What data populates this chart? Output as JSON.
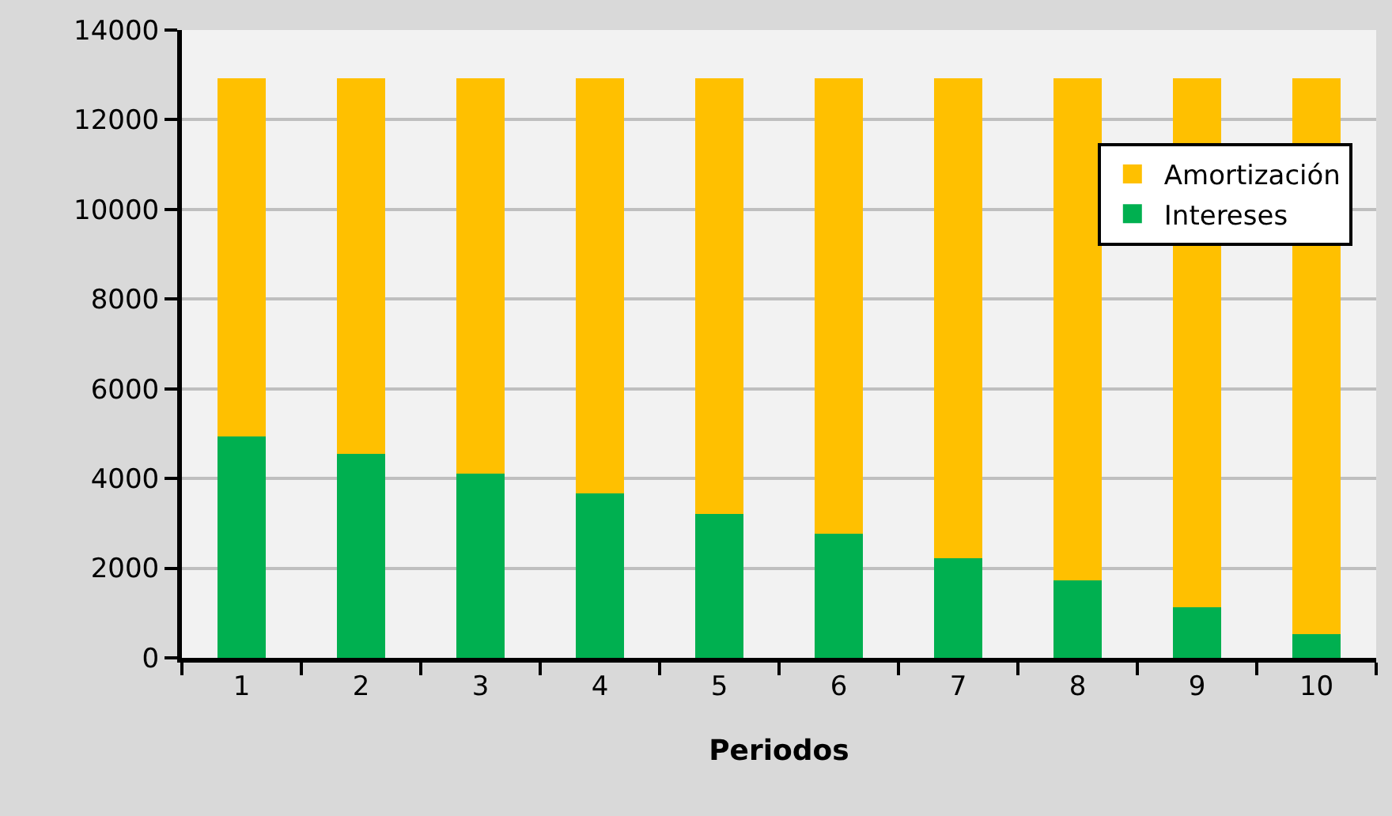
{
  "chart_data": {
    "type": "bar",
    "xlabel": "Periodos",
    "categories": [
      "1",
      "2",
      "3",
      "4",
      "5",
      "6",
      "7",
      "8",
      "9",
      "10"
    ],
    "stacked": true,
    "series": [
      {
        "name": "Intereses",
        "color": "#00b050",
        "values": [
          4930,
          4550,
          4100,
          3670,
          3210,
          2760,
          2230,
          1730,
          1130,
          530
        ]
      },
      {
        "name": "Amortización",
        "color": "#ffc000",
        "values": [
          8000,
          8380,
          8830,
          9260,
          9720,
          10170,
          10700,
          11200,
          11800,
          12400
        ]
      }
    ],
    "ylim": [
      0,
      14000
    ],
    "yticks": [
      0,
      2000,
      4000,
      6000,
      8000,
      10000,
      12000,
      14000
    ],
    "grid": "y",
    "legend": "right"
  }
}
